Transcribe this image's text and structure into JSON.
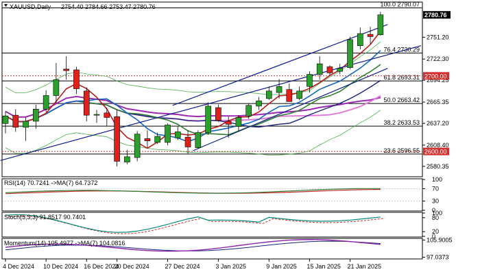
{
  "main_title": "XAUUSD,Daily",
  "ohlc": "2754.40 2784.66 2753.47 2780.76",
  "current_price_label": "2780.76",
  "level_2700_label": "2700.00",
  "level_2600_label": "2600.00",
  "y_ticks": [
    "2751.20",
    "2722.30",
    "2694.25",
    "2665.35",
    "2637.20",
    "2608.40",
    "2580.35"
  ],
  "fib_levels": [
    {
      "label": "100.0 2790.07",
      "price": 2790.07
    },
    {
      "label": "76.4 2730.29",
      "price": 2730.29
    },
    {
      "label": "61.8 2693.31",
      "price": 2693.31
    },
    {
      "label": "50.0 2663.42",
      "price": 2663.42
    },
    {
      "label": "38.2 2633.53",
      "price": 2633.53
    },
    {
      "label": "23.6 2596.55",
      "price": 2596.55
    }
  ],
  "x_labels": [
    "4 Dec 2024",
    "10 Dec 2024",
    "16 Dec 2024",
    "20 Dec 2024",
    "27 Dec 2024",
    "3 Jan 2025",
    "9 Jan 2025",
    "15 Jan 2025",
    "21 Jan 2025"
  ],
  "rsi": {
    "title": "RSI(14) 70.7241 ->MA(7) 64.7372",
    "ticks": [
      "100",
      "70",
      "30",
      "0"
    ]
  },
  "stoch": {
    "title": "Stoch(5,3,3) 91.8517 90.7401",
    "ticks": [
      "100",
      "80",
      "20",
      "0"
    ]
  },
  "momentum": {
    "title": "Momentum(14) 105.4977 ->MA(7) 104.0816",
    "ticks": [
      "105.9005",
      "97.0373"
    ]
  },
  "colors": {
    "bull": "#2ca02c",
    "bear": "#e0201b",
    "bull_border": "#1f7a1f",
    "bear_border": "#a01010",
    "ma_fast": "#b71c1c",
    "ma_blue": "#1565c0",
    "ma_green": "#2e7d32",
    "ma_purple": "#9c27b0",
    "ma_pink": "#e07bd6",
    "ma_navy": "#1a237e",
    "channel": "#0d1b8a",
    "bollinger": "#4caf50",
    "fib_line": "#000000",
    "level_red_bg": "#d32f2f",
    "price_tag_bg": "#000000",
    "rsi_line": "#2e7d32",
    "rsi_ma": "#c62828",
    "stoch_main": "#00897b",
    "stoch_signal": "#c62828",
    "mom_line": "#8e24aa",
    "mom_ma": "#1a237e"
  },
  "chart_data": {
    "type": "candlestick",
    "symbol": "XAUUSD",
    "timeframe": "Daily",
    "ylim": [
      2572,
      2795
    ],
    "candles": [
      {
        "o": 2637,
        "h": 2653,
        "l": 2624,
        "c": 2647
      },
      {
        "o": 2648,
        "h": 2656,
        "l": 2626,
        "c": 2632
      },
      {
        "o": 2632,
        "h": 2645,
        "l": 2614,
        "c": 2640
      },
      {
        "o": 2640,
        "h": 2662,
        "l": 2630,
        "c": 2656
      },
      {
        "o": 2656,
        "h": 2681,
        "l": 2652,
        "c": 2674
      },
      {
        "o": 2674,
        "h": 2717,
        "l": 2664,
        "c": 2695
      },
      {
        "o": 2709,
        "h": 2726,
        "l": 2695,
        "c": 2707
      },
      {
        "o": 2708,
        "h": 2712,
        "l": 2676,
        "c": 2683
      },
      {
        "o": 2680,
        "h": 2685,
        "l": 2640,
        "c": 2648
      },
      {
        "o": 2648,
        "h": 2655,
        "l": 2638,
        "c": 2649
      },
      {
        "o": 2651,
        "h": 2658,
        "l": 2634,
        "c": 2645
      },
      {
        "o": 2646,
        "h": 2655,
        "l": 2580,
        "c": 2587
      },
      {
        "o": 2586,
        "h": 2602,
        "l": 2583,
        "c": 2593
      },
      {
        "o": 2592,
        "h": 2627,
        "l": 2587,
        "c": 2623
      },
      {
        "o": 2617,
        "h": 2628,
        "l": 2605,
        "c": 2614
      },
      {
        "o": 2612,
        "h": 2625,
        "l": 2610,
        "c": 2620
      },
      {
        "o": 2612,
        "h": 2637,
        "l": 2608,
        "c": 2635
      },
      {
        "o": 2618,
        "h": 2633,
        "l": 2615,
        "c": 2626
      },
      {
        "o": 2619,
        "h": 2628,
        "l": 2597,
        "c": 2606
      },
      {
        "o": 2605,
        "h": 2628,
        "l": 2604,
        "c": 2625
      },
      {
        "o": 2625,
        "h": 2665,
        "l": 2622,
        "c": 2660
      },
      {
        "o": 2658,
        "h": 2662,
        "l": 2639,
        "c": 2641
      },
      {
        "o": 2640,
        "h": 2646,
        "l": 2618,
        "c": 2636
      },
      {
        "o": 2633,
        "h": 2648,
        "l": 2627,
        "c": 2645
      },
      {
        "o": 2647,
        "h": 2663,
        "l": 2643,
        "c": 2661
      },
      {
        "o": 2660,
        "h": 2672,
        "l": 2655,
        "c": 2667
      },
      {
        "o": 2670,
        "h": 2686,
        "l": 2668,
        "c": 2680
      },
      {
        "o": 2678,
        "h": 2696,
        "l": 2670,
        "c": 2686
      },
      {
        "o": 2682,
        "h": 2690,
        "l": 2666,
        "c": 2666
      },
      {
        "o": 2670,
        "h": 2686,
        "l": 2668,
        "c": 2680
      },
      {
        "o": 2686,
        "h": 2706,
        "l": 2678,
        "c": 2702
      },
      {
        "o": 2702,
        "h": 2726,
        "l": 2695,
        "c": 2716
      },
      {
        "o": 2712,
        "h": 2714,
        "l": 2700,
        "c": 2704
      },
      {
        "o": 2706,
        "h": 2716,
        "l": 2702,
        "c": 2710
      },
      {
        "o": 2711,
        "h": 2752,
        "l": 2709,
        "c": 2748
      },
      {
        "o": 2740,
        "h": 2764,
        "l": 2735,
        "c": 2756
      },
      {
        "o": 2755,
        "h": 2765,
        "l": 2742,
        "c": 2752
      },
      {
        "o": 2754.4,
        "h": 2784.66,
        "l": 2753.47,
        "c": 2780.76
      }
    ]
  }
}
